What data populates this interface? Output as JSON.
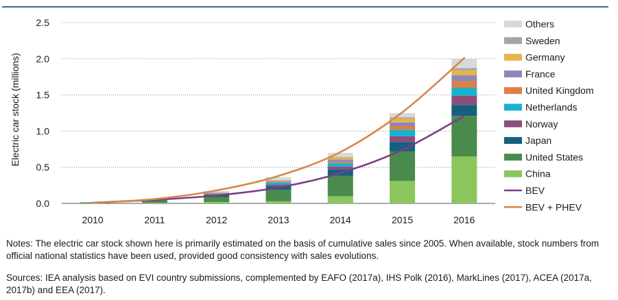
{
  "chart_data": {
    "type": "bar",
    "stacked": true,
    "ylabel": "Electric car stock (millions)",
    "ylim": [
      0,
      2.5
    ],
    "yticks": [
      "0.0",
      "0.5",
      "1.0",
      "1.5",
      "2.0",
      "2.5"
    ],
    "ytick_values": [
      0,
      0.5,
      1.0,
      1.5,
      2.0,
      2.5
    ],
    "grid": "horizontal dotted",
    "legend_position": "right",
    "categories": [
      "2010",
      "2011",
      "2012",
      "2013",
      "2014",
      "2015",
      "2016"
    ],
    "series": [
      {
        "name": "China",
        "color": "#8ac65c",
        "values": [
          0.005,
          0.01,
          0.02,
          0.03,
          0.1,
          0.31,
          0.65
        ]
      },
      {
        "name": "United States",
        "color": "#4a8a4d",
        "values": [
          0.004,
          0.02,
          0.07,
          0.16,
          0.28,
          0.41,
          0.56
        ]
      },
      {
        "name": "Japan",
        "color": "#14607e",
        "values": [
          0.003,
          0.012,
          0.03,
          0.05,
          0.09,
          0.13,
          0.15
        ]
      },
      {
        "name": "Norway",
        "color": "#8c4f7b",
        "values": [
          0.002,
          0.004,
          0.01,
          0.02,
          0.04,
          0.08,
          0.13
        ]
      },
      {
        "name": "Netherlands",
        "color": "#18b2cf",
        "values": [
          0.001,
          0.002,
          0.007,
          0.03,
          0.045,
          0.09,
          0.11
        ]
      },
      {
        "name": "United Kingdom",
        "color": "#dd7f45",
        "values": [
          0.001,
          0.002,
          0.003,
          0.01,
          0.02,
          0.05,
          0.09
        ]
      },
      {
        "name": "France",
        "color": "#8e86ba",
        "values": [
          0.001,
          0.002,
          0.006,
          0.01,
          0.03,
          0.05,
          0.08
        ]
      },
      {
        "name": "Germany",
        "color": "#e4b54a",
        "values": [
          0.001,
          0.002,
          0.004,
          0.01,
          0.025,
          0.05,
          0.07
        ]
      },
      {
        "name": "Sweden",
        "color": "#a5a5a5",
        "values": [
          0.0,
          0.001,
          0.001,
          0.004,
          0.009,
          0.02,
          0.03
        ]
      },
      {
        "name": "Others",
        "color": "#d9d9d9",
        "values": [
          0.004,
          0.01,
          0.02,
          0.04,
          0.06,
          0.06,
          0.13
        ]
      }
    ],
    "lines": [
      {
        "name": "BEV",
        "color": "#7d3c86",
        "values": [
          0.01,
          0.05,
          0.11,
          0.22,
          0.42,
          0.74,
          1.21
        ]
      },
      {
        "name": "BEV + PHEV",
        "color": "#d9854a",
        "values": [
          0.01,
          0.06,
          0.18,
          0.38,
          0.71,
          1.26,
          2.01
        ]
      }
    ],
    "legend_order": [
      "Others",
      "Sweden",
      "Germany",
      "France",
      "United Kingdom",
      "Netherlands",
      "Norway",
      "Japan",
      "United States",
      "China",
      "BEV",
      "BEV + PHEV"
    ]
  },
  "notes": "Notes: The electric car stock shown here is primarily estimated on the basis of cumulative sales since 2005. When available, stock numbers from official national statistics have been used, provided good consistency with sales evolutions.",
  "sources": "Sources: IEA analysis based on EVI country submissions, complemented by EAFO (2017a), IHS Polk (2016), MarkLines (2017), ACEA (2017a, 2017b) and EEA (2017)."
}
